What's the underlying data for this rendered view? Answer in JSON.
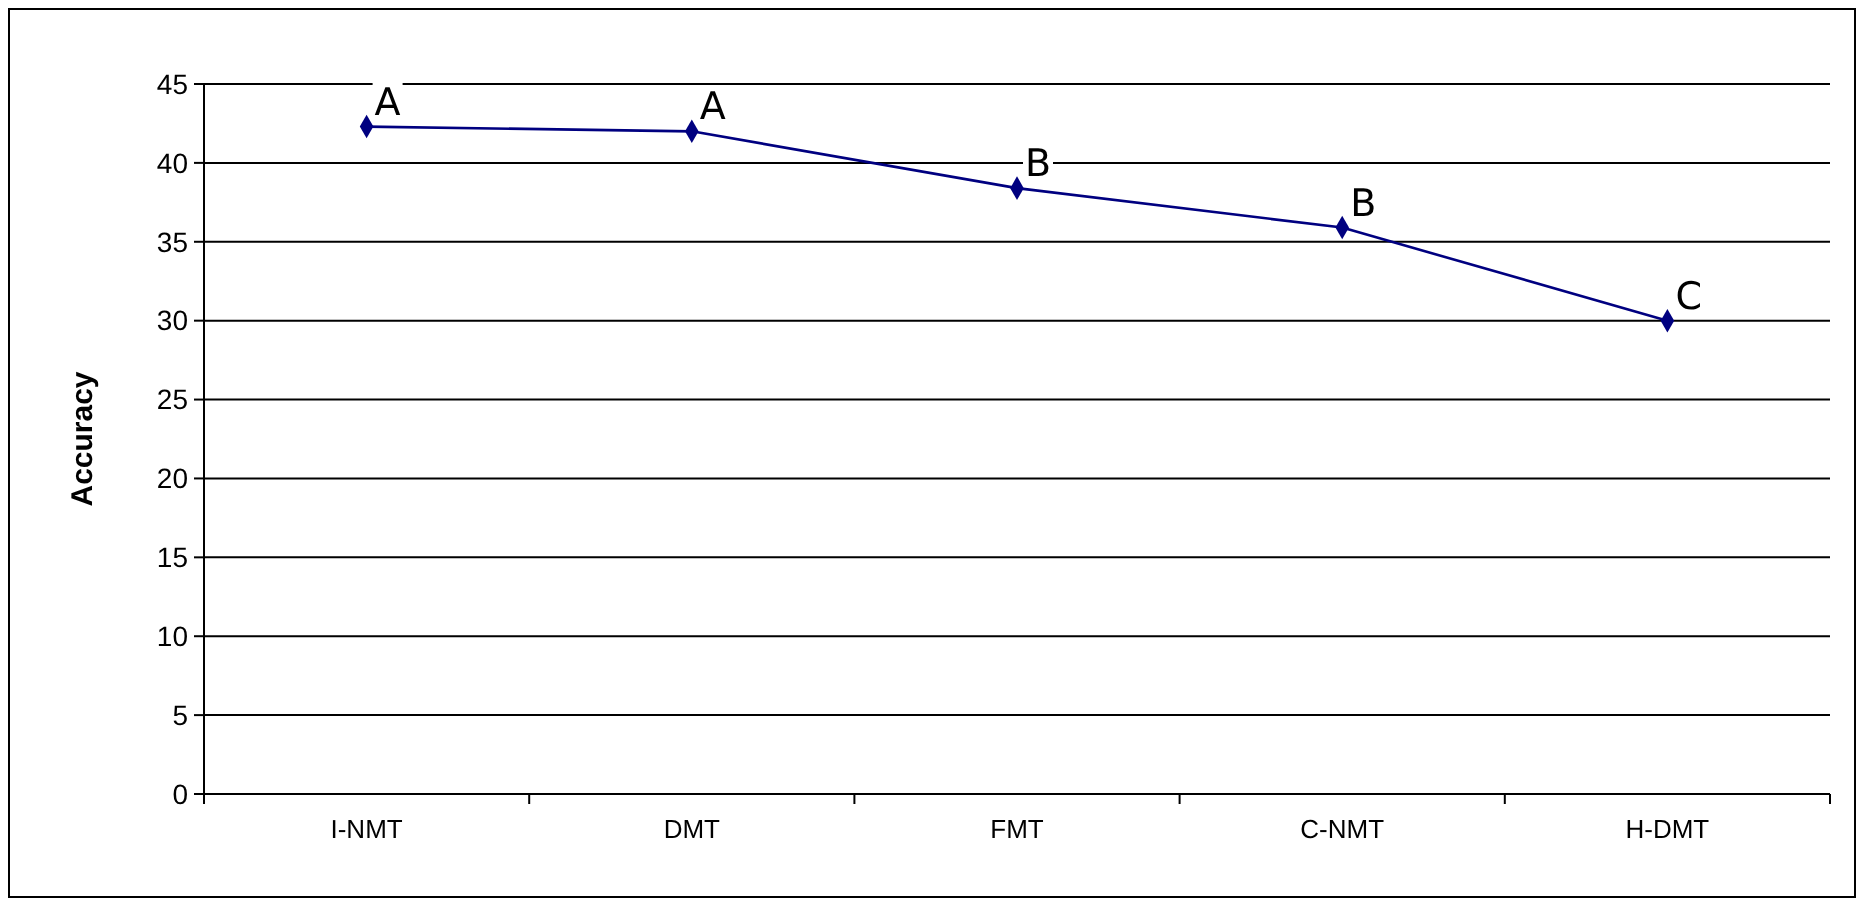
{
  "chart_data": {
    "type": "line",
    "ylabel": "Accuracy",
    "categories": [
      "I-NMT",
      "DMT",
      "FMT",
      "C-NMT",
      "H-DMT"
    ],
    "series": [
      {
        "color": "#000080",
        "values": [
          42.3,
          42.0,
          38.4,
          35.9,
          30.0
        ]
      }
    ],
    "ylim": [
      0,
      45
    ],
    "yticks": [
      0,
      5,
      10,
      15,
      20,
      25,
      30,
      35,
      40,
      45
    ],
    "grid": "y",
    "marker": "diamond",
    "line_style": "solid",
    "annotations": [
      {
        "text": "A",
        "x": "I-NMT",
        "y": 42.3
      },
      {
        "text": "A",
        "x": "DMT",
        "y": 42.0
      },
      {
        "text": "B",
        "x": "FMT",
        "y": 38.4
      },
      {
        "text": "B",
        "x": "C-NMT",
        "y": 35.9
      },
      {
        "text": "C",
        "x": "H-DMT",
        "y": 30.0
      }
    ]
  }
}
